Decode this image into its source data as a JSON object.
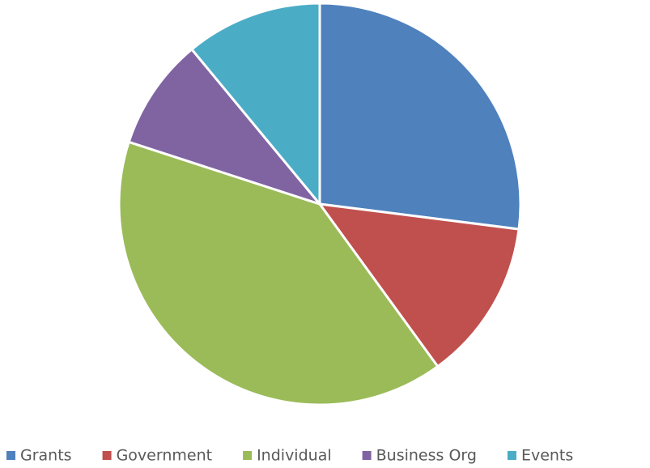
{
  "chart_data": {
    "type": "pie",
    "categories": [
      "Grants",
      "Government",
      "Individual",
      "Business Org",
      "Events"
    ],
    "values": [
      27,
      13,
      40,
      9,
      11
    ],
    "colors": [
      "#4f81bd",
      "#c0504d",
      "#9bbb59",
      "#8064a2",
      "#4bacc6"
    ],
    "legend": "bottom"
  }
}
